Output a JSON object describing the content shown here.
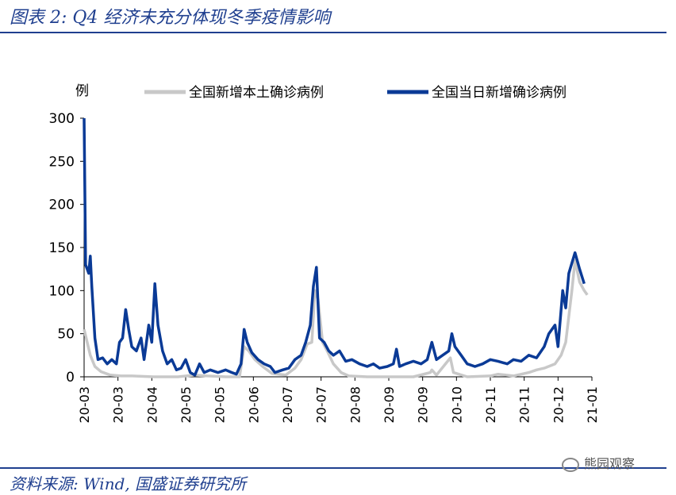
{
  "header": {
    "title": "图表 2:  Q4 经济未充分体现冬季疫情影响"
  },
  "footer": {
    "source": "资料来源:  Wind, 国盛证券研究所",
    "watermark": "熊园观察",
    "watermark_icon": "wechat-icon"
  },
  "colors": {
    "accent": "#1f3f8f",
    "local": "#c8c8c8",
    "total": "#0a3a96"
  },
  "chart_data": {
    "type": "line",
    "title": "",
    "ylabel": "例",
    "ylim": [
      0,
      300
    ],
    "yticks": [
      "0",
      "50",
      "100",
      "150",
      "200",
      "250",
      "300"
    ],
    "xticks": [
      "20-03",
      "20-03",
      "20-04",
      "20-05",
      "20-05",
      "20-06",
      "20-07",
      "20-07",
      "20-08",
      "20-09",
      "20-09",
      "20-10",
      "20-11",
      "20-11",
      "20-12",
      "21-01"
    ],
    "x_start": "2020-03-01",
    "x_end": "2021-01-25",
    "legend_position": "top",
    "series": [
      {
        "name": "全国新增本土确诊病例",
        "points": [
          [
            "2020-03-01",
            55
          ],
          [
            "2020-03-03",
            40
          ],
          [
            "2020-03-05",
            25
          ],
          [
            "2020-03-08",
            12
          ],
          [
            "2020-03-12",
            6
          ],
          [
            "2020-03-18",
            2
          ],
          [
            "2020-03-25",
            1
          ],
          [
            "2020-04-01",
            1
          ],
          [
            "2020-04-15",
            0
          ],
          [
            "2020-05-01",
            0
          ],
          [
            "2020-05-12",
            2
          ],
          [
            "2020-05-20",
            1
          ],
          [
            "2020-06-01",
            0
          ],
          [
            "2020-06-10",
            0
          ],
          [
            "2020-06-13",
            35
          ],
          [
            "2020-06-16",
            30
          ],
          [
            "2020-06-20",
            20
          ],
          [
            "2020-06-25",
            12
          ],
          [
            "2020-07-01",
            4
          ],
          [
            "2020-07-10",
            2
          ],
          [
            "2020-07-16",
            10
          ],
          [
            "2020-07-20",
            20
          ],
          [
            "2020-07-24",
            38
          ],
          [
            "2020-07-27",
            40
          ],
          [
            "2020-07-29",
            100
          ],
          [
            "2020-07-31",
            90
          ],
          [
            "2020-08-03",
            40
          ],
          [
            "2020-08-06",
            30
          ],
          [
            "2020-08-10",
            15
          ],
          [
            "2020-08-15",
            5
          ],
          [
            "2020-08-20",
            1
          ],
          [
            "2020-09-01",
            0
          ],
          [
            "2020-09-15",
            0
          ],
          [
            "2020-10-01",
            0
          ],
          [
            "2020-10-12",
            5
          ],
          [
            "2020-10-13",
            8
          ],
          [
            "2020-10-16",
            2
          ],
          [
            "2020-10-25",
            22
          ],
          [
            "2020-10-27",
            5
          ],
          [
            "2020-11-05",
            0
          ],
          [
            "2020-11-20",
            1
          ],
          [
            "2020-11-25",
            3
          ],
          [
            "2020-12-05",
            1
          ],
          [
            "2020-12-15",
            5
          ],
          [
            "2020-12-20",
            8
          ],
          [
            "2020-12-25",
            10
          ],
          [
            "2021-01-01",
            15
          ],
          [
            "2021-01-05",
            25
          ],
          [
            "2021-01-08",
            40
          ],
          [
            "2021-01-10",
            70
          ],
          [
            "2021-01-12",
            100
          ],
          [
            "2021-01-14",
            135
          ],
          [
            "2021-01-17",
            110
          ],
          [
            "2021-01-20",
            100
          ],
          [
            "2021-01-22",
            95
          ]
        ]
      },
      {
        "name": "全国当日新增确诊病例",
        "points": [
          [
            "2020-03-01",
            300
          ],
          [
            "2020-03-02",
            130
          ],
          [
            "2020-03-03",
            125
          ],
          [
            "2020-03-04",
            120
          ],
          [
            "2020-03-05",
            140
          ],
          [
            "2020-03-06",
            105
          ],
          [
            "2020-03-08",
            45
          ],
          [
            "2020-03-10",
            20
          ],
          [
            "2020-03-13",
            22
          ],
          [
            "2020-03-16",
            15
          ],
          [
            "2020-03-19",
            20
          ],
          [
            "2020-03-22",
            15
          ],
          [
            "2020-03-24",
            40
          ],
          [
            "2020-03-26",
            45
          ],
          [
            "2020-03-28",
            78
          ],
          [
            "2020-03-30",
            55
          ],
          [
            "2020-04-01",
            35
          ],
          [
            "2020-04-04",
            30
          ],
          [
            "2020-04-07",
            45
          ],
          [
            "2020-04-09",
            20
          ],
          [
            "2020-04-12",
            60
          ],
          [
            "2020-04-14",
            40
          ],
          [
            "2020-04-16",
            108
          ],
          [
            "2020-04-18",
            60
          ],
          [
            "2020-04-21",
            30
          ],
          [
            "2020-04-24",
            15
          ],
          [
            "2020-04-27",
            20
          ],
          [
            "2020-04-30",
            8
          ],
          [
            "2020-05-03",
            10
          ],
          [
            "2020-05-06",
            20
          ],
          [
            "2020-05-09",
            5
          ],
          [
            "2020-05-12",
            2
          ],
          [
            "2020-05-15",
            15
          ],
          [
            "2020-05-18",
            5
          ],
          [
            "2020-05-22",
            8
          ],
          [
            "2020-05-27",
            5
          ],
          [
            "2020-06-01",
            8
          ],
          [
            "2020-06-05",
            5
          ],
          [
            "2020-06-08",
            3
          ],
          [
            "2020-06-11",
            15
          ],
          [
            "2020-06-13",
            55
          ],
          [
            "2020-06-15",
            40
          ],
          [
            "2020-06-18",
            28
          ],
          [
            "2020-06-22",
            20
          ],
          [
            "2020-06-26",
            15
          ],
          [
            "2020-06-30",
            12
          ],
          [
            "2020-07-03",
            5
          ],
          [
            "2020-07-08",
            8
          ],
          [
            "2020-07-12",
            10
          ],
          [
            "2020-07-16",
            20
          ],
          [
            "2020-07-20",
            25
          ],
          [
            "2020-07-23",
            40
          ],
          [
            "2020-07-26",
            60
          ],
          [
            "2020-07-28",
            105
          ],
          [
            "2020-07-30",
            127
          ],
          [
            "2020-08-01",
            45
          ],
          [
            "2020-08-04",
            40
          ],
          [
            "2020-08-07",
            30
          ],
          [
            "2020-08-10",
            25
          ],
          [
            "2020-08-14",
            30
          ],
          [
            "2020-08-18",
            18
          ],
          [
            "2020-08-22",
            20
          ],
          [
            "2020-08-27",
            15
          ],
          [
            "2020-09-01",
            12
          ],
          [
            "2020-09-05",
            15
          ],
          [
            "2020-09-09",
            10
          ],
          [
            "2020-09-14",
            12
          ],
          [
            "2020-09-18",
            15
          ],
          [
            "2020-09-20",
            32
          ],
          [
            "2020-09-22",
            12
          ],
          [
            "2020-09-26",
            15
          ],
          [
            "2020-10-01",
            18
          ],
          [
            "2020-10-06",
            15
          ],
          [
            "2020-10-10",
            20
          ],
          [
            "2020-10-13",
            40
          ],
          [
            "2020-10-16",
            20
          ],
          [
            "2020-10-20",
            25
          ],
          [
            "2020-10-24",
            30
          ],
          [
            "2020-10-26",
            50
          ],
          [
            "2020-10-28",
            35
          ],
          [
            "2020-11-01",
            25
          ],
          [
            "2020-11-05",
            15
          ],
          [
            "2020-11-10",
            12
          ],
          [
            "2020-11-15",
            15
          ],
          [
            "2020-11-20",
            20
          ],
          [
            "2020-11-25",
            18
          ],
          [
            "2020-12-01",
            15
          ],
          [
            "2020-12-05",
            20
          ],
          [
            "2020-12-10",
            18
          ],
          [
            "2020-12-15",
            25
          ],
          [
            "2020-12-20",
            22
          ],
          [
            "2020-12-25",
            35
          ],
          [
            "2020-12-28",
            50
          ],
          [
            "2020-12-30",
            55
          ],
          [
            "2021-01-01",
            60
          ],
          [
            "2021-01-03",
            35
          ],
          [
            "2021-01-06",
            100
          ],
          [
            "2021-01-08",
            80
          ],
          [
            "2021-01-10",
            120
          ],
          [
            "2021-01-14",
            144
          ],
          [
            "2021-01-17",
            125
          ],
          [
            "2021-01-20",
            108
          ]
        ]
      }
    ]
  }
}
